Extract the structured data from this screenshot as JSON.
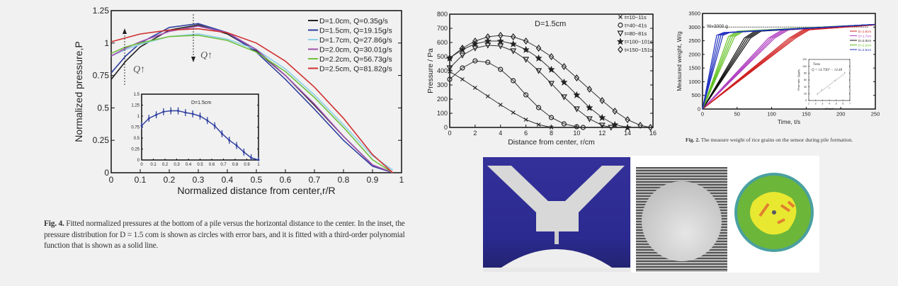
{
  "fig4": {
    "caption_label": "Fig. 4.",
    "caption_text": " Fitted normalized pressures at the bottom of a pile versus the horizontal distance to the center. In the inset, the pressure distribution for D = 1.5 com is shown as circles with error bars, and it is fitted with a third-order polynomial function that is shown as a solid line."
  },
  "fig2": {
    "caption_label": "Fig. 2.",
    "caption_text": " The measure weight of rice grains on the sensor during pile formation."
  },
  "chart_data": [
    {
      "type": "line",
      "xlabel": "Normalized distance from center,r/R",
      "ylabel": "Normalized pressure,P",
      "xlim": [
        0,
        1
      ],
      "ylim": [
        0,
        1.25
      ],
      "xticks": [
        "0",
        "0.1",
        "0.2",
        "0.3",
        "0.4",
        "0.5",
        "0.6",
        "0.7",
        "0.8",
        "0.9",
        "1"
      ],
      "yticks": [
        "0",
        "0.25",
        "0.5",
        "0.75",
        "1",
        "1.25"
      ],
      "legend": "top-right",
      "annotations": [
        "Q↑",
        "Q↑"
      ],
      "x": [
        0,
        0.05,
        0.1,
        0.2,
        0.3,
        0.4,
        0.5,
        0.6,
        0.7,
        0.8,
        0.9,
        0.97
      ],
      "series": [
        {
          "name": "D=1.0cm, Q=0.35g/s",
          "color": "#222222",
          "values": [
            0.72,
            0.86,
            0.97,
            1.1,
            1.14,
            1.07,
            0.94,
            0.75,
            0.52,
            0.28,
            0.06,
            0
          ]
        },
        {
          "name": "D=1.5cm, Q=19.15g/s",
          "color": "#3040a0",
          "values": [
            0.77,
            0.9,
            1.0,
            1.12,
            1.15,
            1.08,
            0.93,
            0.72,
            0.49,
            0.25,
            0.05,
            0
          ]
        },
        {
          "name": "D=1.7cm, Q=27.86g/s",
          "color": "#8fd0e8",
          "values": [
            0.9,
            0.95,
            0.99,
            1.05,
            1.07,
            1.03,
            0.95,
            0.8,
            0.6,
            0.37,
            0.13,
            0.02
          ]
        },
        {
          "name": "D=2.0cm, Q=30.01g/s",
          "color": "#a050b0",
          "values": [
            0.9,
            0.96,
            1.01,
            1.09,
            1.13,
            1.08,
            0.95,
            0.75,
            0.53,
            0.28,
            0.06,
            0
          ]
        },
        {
          "name": "D=2.2cm, Q=56.73g/s",
          "color": "#70c040",
          "values": [
            0.92,
            0.97,
            1.0,
            1.05,
            1.06,
            1.02,
            0.93,
            0.78,
            0.58,
            0.35,
            0.1,
            0
          ]
        },
        {
          "name": "D=2.5cm, Q=81.82g/s",
          "color": "#d03030",
          "values": [
            1.01,
            1.04,
            1.07,
            1.1,
            1.11,
            1.08,
            1.0,
            0.86,
            0.66,
            0.42,
            0.14,
            0
          ]
        }
      ],
      "inset": {
        "title": "D=1.5cm",
        "xlim": [
          0,
          1
        ],
        "ylim": [
          0,
          1.5
        ],
        "xticks": [
          "0",
          "0.1",
          "0.2",
          "0.3",
          "0.4",
          "0.5",
          "0.6",
          "0.7",
          "0.8",
          "0.9",
          "1"
        ],
        "yticks": [
          "0",
          "0.25",
          "0.5",
          "0.75",
          "1",
          "1.25",
          "1.5"
        ],
        "x": [
          0,
          0.0625,
          0.125,
          0.1875,
          0.25,
          0.3125,
          0.375,
          0.4375,
          0.5,
          0.5625,
          0.625,
          0.6875,
          0.75,
          0.8125,
          0.875,
          0.9375,
          1
        ],
        "values": [
          0.78,
          0.95,
          1.03,
          1.1,
          1.12,
          1.12,
          1.08,
          1.05,
          1.0,
          0.9,
          0.78,
          0.6,
          0.45,
          0.33,
          0.18,
          0.05,
          0.0
        ],
        "error": 0.08
      }
    },
    {
      "type": "scatter",
      "title": "D=1.5cm",
      "xlabel": "Distance from center, r/cm",
      "ylabel": "Pressure / Pa",
      "xlim": [
        0,
        16
      ],
      "ylim": [
        0,
        800
      ],
      "xticks": [
        "0",
        "2",
        "4",
        "6",
        "8",
        "10",
        "12",
        "14",
        "16"
      ],
      "yticks": [
        "0",
        "100",
        "200",
        "300",
        "400",
        "500",
        "600",
        "700",
        "800"
      ],
      "legend": "top-right",
      "series": [
        {
          "name": "t=10~11s",
          "marker": "x",
          "points": [
            [
              0,
              395
            ],
            [
              1,
              340
            ],
            [
              2,
              280
            ],
            [
              3,
              220
            ],
            [
              4,
              160
            ],
            [
              5,
              105
            ],
            [
              6,
              55
            ],
            [
              7,
              20
            ],
            [
              8,
              0
            ]
          ]
        },
        {
          "name": "t=40~41s",
          "marker": "o",
          "points": [
            [
              0,
              340
            ],
            [
              1,
              420
            ],
            [
              2,
              470
            ],
            [
              3,
              460
            ],
            [
              4,
              410
            ],
            [
              5,
              330
            ],
            [
              6,
              230
            ],
            [
              7,
              140
            ],
            [
              8,
              70
            ],
            [
              9,
              25
            ],
            [
              10,
              5
            ],
            [
              10.5,
              0
            ]
          ]
        },
        {
          "name": "t=80~81s",
          "marker": "v",
          "points": [
            [
              0,
              420
            ],
            [
              1,
              510
            ],
            [
              2,
              560
            ],
            [
              3,
              580
            ],
            [
              4,
              575
            ],
            [
              5,
              540
            ],
            [
              6,
              480
            ],
            [
              7,
              400
            ],
            [
              8,
              310
            ],
            [
              9,
              215
            ],
            [
              10,
              130
            ],
            [
              11,
              60
            ],
            [
              12,
              15
            ],
            [
              12.7,
              0
            ]
          ]
        },
        {
          "name": "t=100~101s",
          "marker": "*",
          "points": [
            [
              0,
              490
            ],
            [
              1,
              550
            ],
            [
              2,
              590
            ],
            [
              3,
              610
            ],
            [
              4,
              610
            ],
            [
              5,
              590
            ],
            [
              6,
              550
            ],
            [
              7,
              490
            ],
            [
              8,
              410
            ],
            [
              9,
              320
            ],
            [
              10,
              230
            ],
            [
              11,
              140
            ],
            [
              12,
              70
            ],
            [
              13,
              20
            ],
            [
              14,
              0
            ]
          ]
        },
        {
          "name": "t=150~151s",
          "marker": "d",
          "points": [
            [
              0,
              490
            ],
            [
              1,
              560
            ],
            [
              2,
              610
            ],
            [
              3,
              640
            ],
            [
              4,
              650
            ],
            [
              5,
              640
            ],
            [
              6,
              610
            ],
            [
              7,
              560
            ],
            [
              8,
              500
            ],
            [
              9,
              430
            ],
            [
              10,
              350
            ],
            [
              11,
              270
            ],
            [
              12,
              190
            ],
            [
              13,
              115
            ],
            [
              14,
              55
            ],
            [
              15,
              15
            ],
            [
              15.8,
              0
            ]
          ]
        }
      ]
    },
    {
      "type": "line",
      "xlabel": "Time, t/s",
      "ylabel": "Measured weight, W/g",
      "xlim": [
        0,
        250
      ],
      "ylim": [
        0,
        3500
      ],
      "xticks": [
        "0",
        "50",
        "100",
        "150",
        "200",
        "250"
      ],
      "yticks": [
        "0",
        "500",
        "1000",
        "1500",
        "2000",
        "2500",
        "3000",
        "3500"
      ],
      "legend": "right",
      "annotation": "W=3000 g",
      "series": [
        {
          "name": "D=1.5cm",
          "color": "#d02020",
          "points": [
            [
              0,
              0
            ],
            [
              130,
              2600
            ],
            [
              150,
              2900
            ],
            [
              250,
              3080
            ]
          ]
        },
        {
          "name": "D=1.7cm",
          "color": "#b040c0",
          "points": [
            [
              0,
              0
            ],
            [
              100,
              2600
            ],
            [
              120,
              2900
            ],
            [
              250,
              3100
            ]
          ]
        },
        {
          "name": "D=2.0cm",
          "color": "#111111",
          "points": [
            [
              0,
              0
            ],
            [
              65,
              2600
            ],
            [
              80,
              2850
            ],
            [
              250,
              3100
            ]
          ]
        },
        {
          "name": "D=2.2cm",
          "color": "#60c020",
          "points": [
            [
              0,
              0
            ],
            [
              42,
              2650
            ],
            [
              55,
              2850
            ],
            [
              250,
              3100
            ]
          ]
        },
        {
          "name": "D=2.5cm",
          "color": "#2030c0",
          "points": [
            [
              0,
              0
            ],
            [
              25,
              2700
            ],
            [
              35,
              2800
            ],
            [
              250,
              3100
            ]
          ]
        }
      ],
      "inset": {
        "legend": "Tests",
        "fit": "Q = 14.79D² − 14.48",
        "xlabel": "D²/cm²",
        "ylabel": "Flow rate, Q(g/s)",
        "xlim": [
          1,
          7
        ],
        "ylim": [
          0,
          120
        ],
        "xticks": [
          "1",
          "2",
          "3",
          "4",
          "5",
          "6",
          "7"
        ],
        "yticks": [
          "0",
          "20",
          "40",
          "60",
          "80",
          "100",
          "120"
        ],
        "points": [
          [
            2.25,
            19
          ],
          [
            2.89,
            31
          ],
          [
            4,
            37
          ],
          [
            4.84,
            59
          ],
          [
            6.25,
            82
          ]
        ]
      }
    }
  ]
}
